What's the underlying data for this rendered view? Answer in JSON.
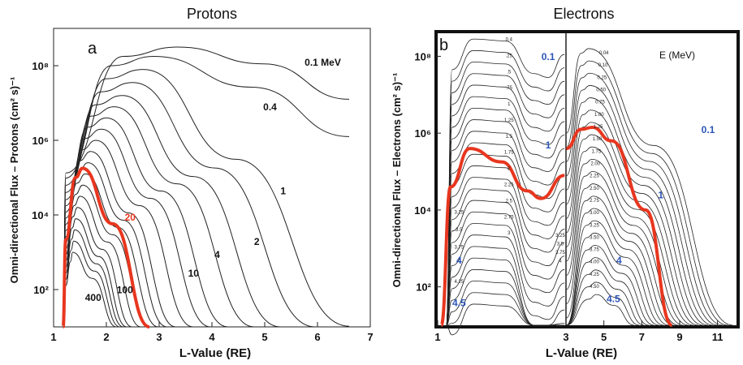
{
  "chart_data": [
    {
      "type": "line",
      "panel": "a",
      "title": "Protons",
      "xlabel": "L-Value (RE)",
      "ylabel": "Omni-directional Flux – Protons  (cm² s)⁻¹",
      "xlim": [
        1,
        7
      ],
      "ylim_log10": [
        1,
        9
      ],
      "xticks": [
        "1",
        "2",
        "3",
        "4",
        "5",
        "6",
        "7"
      ],
      "yticks": [
        {
          "value": 2,
          "label": "10²"
        },
        {
          "value": 4,
          "label": "10⁴"
        },
        {
          "value": 6,
          "label": "10⁶"
        },
        {
          "value": 8,
          "label": "10⁸"
        }
      ],
      "grid": false,
      "highlight_color": "#e8361f",
      "curves": [
        {
          "peak_L": 3.35,
          "peak_log": 8.5,
          "end_log": 7.1
        },
        {
          "peak_L": 2.9,
          "peak_log": 8.25,
          "end_log": 6.1
        },
        {
          "peak_L": 2.7,
          "peak_log": 7.9
        },
        {
          "peak_L": 2.5,
          "peak_log": 7.55
        },
        {
          "peak_L": 2.3,
          "peak_log": 7.2
        },
        {
          "peak_L": 2.15,
          "peak_log": 6.9
        },
        {
          "peak_L": 2.0,
          "peak_log": 6.6
        },
        {
          "peak_L": 1.9,
          "peak_log": 6.3
        },
        {
          "peak_L": 1.8,
          "peak_log": 6.0
        },
        {
          "peak_L": 1.7,
          "peak_log": 5.7
        },
        {
          "peak_L": 1.65,
          "peak_log": 5.4
        },
        {
          "peak_L": 1.6,
          "peak_log": 5.1
        },
        {
          "peak_L": 1.55,
          "peak_log": 4.8
        },
        {
          "peak_L": 1.5,
          "peak_log": 4.5
        },
        {
          "peak_L": 1.45,
          "peak_log": 4.2
        },
        {
          "peak_L": 1.42,
          "peak_log": 3.9
        },
        {
          "peak_L": 1.4,
          "peak_log": 3.6
        },
        {
          "peak_L": 1.38,
          "peak_log": 3.3
        },
        {
          "peak_L": 1.36,
          "peak_log": 3.0
        },
        {
          "peak_L": 1.55,
          "peak_log": 5.25,
          "highlight": true
        }
      ],
      "labels": [
        {
          "text": "0.1 MeV",
          "L": 6.1,
          "log": 8.0
        },
        {
          "text": "0.4",
          "L": 5.1,
          "log": 6.8
        },
        {
          "text": "1",
          "L": 5.35,
          "log": 4.55
        },
        {
          "text": "2",
          "L": 4.85,
          "log": 3.2
        },
        {
          "text": "4",
          "L": 4.1,
          "log": 2.85
        },
        {
          "text": "10",
          "L": 3.65,
          "log": 2.35
        },
        {
          "text": "20",
          "L": 2.45,
          "log": 3.85,
          "highlight": true
        },
        {
          "text": "100",
          "L": 2.35,
          "log": 1.9
        },
        {
          "text": "400",
          "L": 1.75,
          "log": 1.7
        }
      ]
    },
    {
      "type": "line",
      "panel": "b",
      "title": "Electrons",
      "xlabel": "L-Value (RE)",
      "ylabel": "Omni-directional Flux – Electrons  (cm² s)⁻¹",
      "ylim_log10": [
        1,
        8.6
      ],
      "xticks": [
        "1",
        "3",
        "5",
        "7",
        "9",
        "11"
      ],
      "yticks": [
        {
          "value": 2,
          "label": "10²"
        },
        {
          "value": 4,
          "label": "10⁴"
        },
        {
          "value": 6,
          "label": "10⁶"
        },
        {
          "value": 8,
          "label": "10⁸"
        }
      ],
      "grid": false,
      "highlight_color": "#e8361f",
      "label_color": "#2c55b8",
      "legend_text": "E (MeV)",
      "left_subpanel": {
        "xlim": [
          1,
          2.8
        ],
        "energy_labels": [
          "0.4",
          ".25",
          ".5",
          ".75",
          "1",
          "1.25",
          "1.5",
          "1.75",
          "2",
          "2.25",
          "2.5",
          "2.75",
          "3"
        ],
        "right_labels": [
          "3.25",
          "3.5",
          "3.75",
          "4"
        ],
        "left_labels": [
          "3.25",
          "3.5",
          "3.75",
          "4.25"
        ],
        "blue_labels": [
          "0.1",
          "1",
          "4",
          "4.5"
        ]
      },
      "right_subpanel": {
        "xlim": [
          3,
          12
        ],
        "energy_labels": [
          "0.04",
          "0.10",
          "0.25",
          "0.50",
          "0.75",
          "1.00",
          "1.25",
          "1.50",
          "1.75",
          "2.00",
          "2.25",
          "2.50",
          "2.75",
          "3.00",
          "3.25",
          "3.50",
          "3.75",
          "4.00",
          "4.25",
          "4.50"
        ],
        "blue_labels": [
          "0.1",
          "1",
          "4",
          "4.5"
        ]
      }
    }
  ]
}
